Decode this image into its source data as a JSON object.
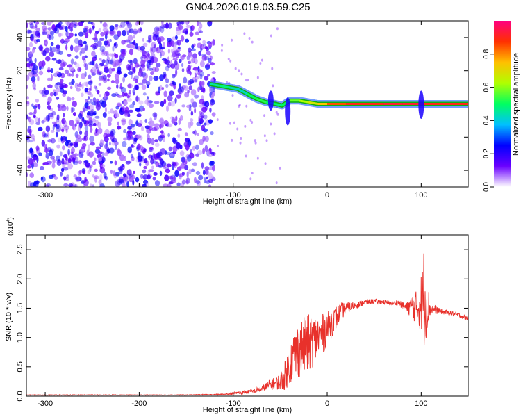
{
  "title": "GN04.2026.019.03.59.C25",
  "colors": {
    "snr_line": "#e8312b",
    "ridge_core": "#e8312b",
    "ridge_edge": "#10b010",
    "scatter": "#7a2be0"
  },
  "chart_data": [
    {
      "type": "heatmap",
      "xlabel": "Height of straight line (km)",
      "ylabel": "Frequency (Hz)",
      "xlim": [
        -320,
        150
      ],
      "ylim": [
        -50,
        50
      ],
      "xticks": [
        -300,
        -200,
        -100,
        0,
        100
      ],
      "yticks": [
        -40,
        -20,
        0,
        20,
        40
      ],
      "colorbar": {
        "label": "Normalized spectral amplitude",
        "range": [
          0,
          1
        ],
        "ticks": [
          "0.0",
          "0.2",
          "0.4",
          "0.6",
          "0.8"
        ],
        "tick_values": [
          0.0,
          0.2,
          0.4,
          0.6,
          0.8
        ],
        "colormap": [
          "#ffffff",
          "#6a00ff",
          "#0000ff",
          "#00c0ff",
          "#00ff60",
          "#b0ff00",
          "#ffc000",
          "#ff3000",
          "#ff0080"
        ]
      },
      "noise_region": {
        "x_range": [
          -320,
          -120
        ],
        "y_range": [
          -50,
          50
        ],
        "amplitude": 0.15
      },
      "ridge": {
        "x": [
          -125,
          -115,
          -105,
          -95,
          -85,
          -75,
          -65,
          -55,
          -48,
          -40,
          -30,
          -20,
          -10,
          0,
          20,
          40,
          60,
          80,
          100,
          150
        ],
        "y": [
          12,
          11,
          10,
          9,
          6,
          3,
          1,
          0,
          -1,
          2,
          2,
          1,
          0,
          0,
          0,
          0,
          0,
          0,
          0,
          0
        ],
        "amplitude": [
          0.4,
          0.5,
          0.45,
          0.4,
          0.45,
          0.55,
          0.5,
          0.5,
          0.45,
          0.55,
          0.6,
          0.65,
          0.7,
          0.8,
          0.9,
          0.9,
          0.9,
          0.95,
          0.9,
          0.9
        ]
      },
      "excursions": [
        {
          "x": -42,
          "y_range": [
            -13,
            4
          ]
        },
        {
          "x": -60,
          "y_range": [
            -4,
            8
          ]
        },
        {
          "x": 100,
          "y_range": [
            -9,
            8
          ]
        }
      ]
    },
    {
      "type": "line",
      "xlabel": "Height of straight line (km)",
      "ylabel": "SNR (10 * v/v)",
      "scale_label": "(x10",
      "scale_exp": "4",
      "scale_close": ")",
      "xlim": [
        -320,
        150
      ],
      "ylim": [
        0,
        2.75
      ],
      "xticks": [
        -300,
        -200,
        -100,
        0,
        100
      ],
      "yticks": [
        "0.0",
        "0.5",
        "1.0",
        "1.5",
        "2.0",
        "2.5"
      ],
      "ytick_values": [
        0.0,
        0.5,
        1.0,
        1.5,
        2.0,
        2.5
      ],
      "series": [
        {
          "color": "#e8312b",
          "x": [
            -320,
            -250,
            -200,
            -150,
            -110,
            -100,
            -90,
            -80,
            -70,
            -60,
            -55,
            -50,
            -45,
            -40,
            -35,
            -30,
            -25,
            -20,
            -15,
            -10,
            -5,
            0,
            5,
            10,
            15,
            20,
            30,
            40,
            50,
            60,
            70,
            75,
            80,
            85,
            90,
            95,
            100,
            103,
            106,
            110,
            120,
            130,
            140,
            150
          ],
          "y": [
            0.02,
            0.02,
            0.02,
            0.02,
            0.03,
            0.05,
            0.06,
            0.08,
            0.12,
            0.2,
            0.22,
            0.25,
            0.35,
            0.55,
            0.7,
            0.8,
            0.85,
            0.9,
            0.95,
            1.0,
            1.05,
            1.15,
            1.25,
            1.35,
            1.45,
            1.5,
            1.55,
            1.6,
            1.62,
            1.6,
            1.58,
            1.6,
            1.55,
            1.5,
            1.55,
            1.5,
            1.6,
            1.7,
            1.55,
            1.5,
            1.45,
            1.42,
            1.38,
            1.32
          ],
          "noise": [
            0.005,
            0.005,
            0.005,
            0.005,
            0.01,
            0.02,
            0.03,
            0.04,
            0.05,
            0.1,
            0.1,
            0.15,
            0.25,
            0.35,
            0.45,
            0.5,
            0.5,
            0.5,
            0.45,
            0.4,
            0.35,
            0.3,
            0.25,
            0.2,
            0.15,
            0.1,
            0.06,
            0.05,
            0.04,
            0.04,
            0.04,
            0.05,
            0.06,
            0.1,
            0.2,
            0.3,
            0.5,
            0.9,
            0.5,
            0.1,
            0.05,
            0.04,
            0.04,
            0.04
          ]
        }
      ]
    }
  ]
}
